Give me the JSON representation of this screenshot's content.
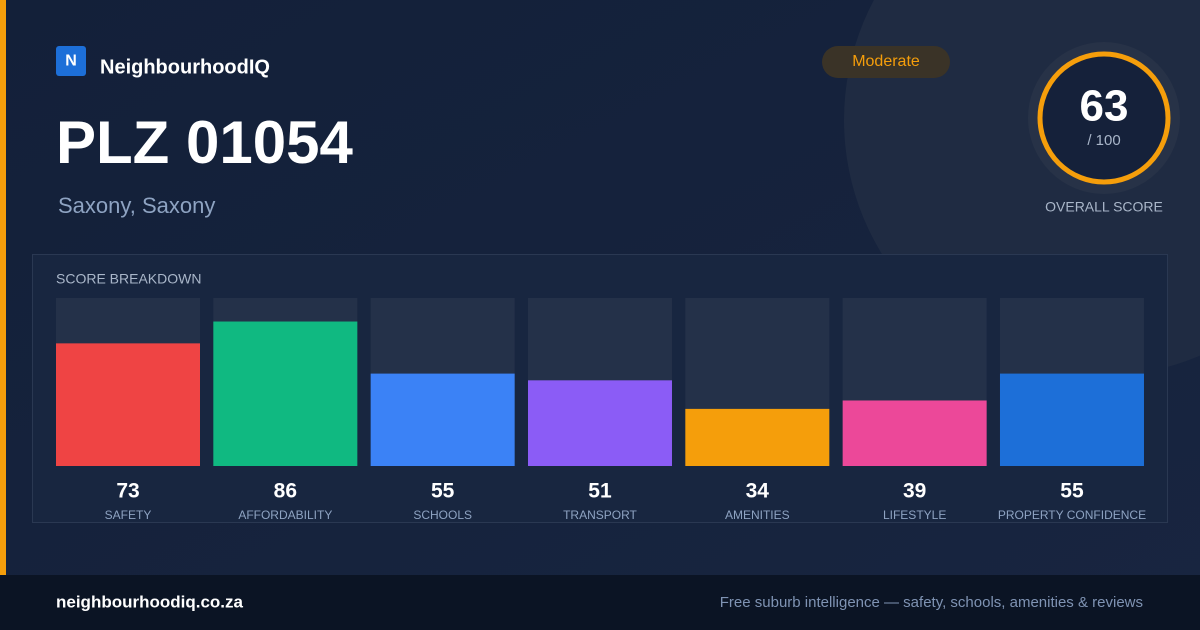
{
  "brand": {
    "logo_letter": "N",
    "name": "NeighbourhoodIQ"
  },
  "header": {
    "title": "PLZ 01054",
    "subtitle": "Saxony, Saxony",
    "badge": "Moderate"
  },
  "overall": {
    "value": 63,
    "max": {
      "value": 100,
      "label": "/ 100"
    },
    "label": "OVERALL SCORE"
  },
  "chart_data": {
    "type": "bar",
    "title": "SCORE BREAKDOWN",
    "ylim": [
      0,
      100
    ],
    "categories": [
      "SAFETY",
      "AFFORDABILITY",
      "SCHOOLS",
      "TRANSPORT",
      "AMENITIES",
      "LIFESTYLE",
      "PROPERTY CONFIDENCE"
    ],
    "values": [
      73,
      86,
      55,
      51,
      34,
      39,
      55
    ],
    "colors": [
      "#ef4444",
      "#10b981",
      "#3b82f6",
      "#8b5cf6",
      "#f59e0b",
      "#ec4899",
      "#1d6fd8"
    ]
  },
  "footer": {
    "url": "neighbourhoodiq.co.za",
    "tagline": "Free suburb intelligence — safety, schools, amenities & reviews"
  }
}
